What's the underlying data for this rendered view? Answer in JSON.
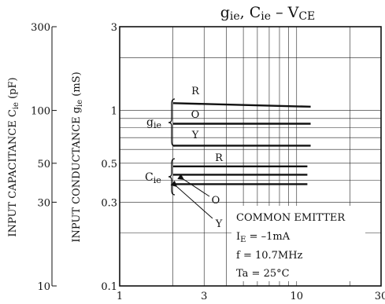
{
  "chart_data": {
    "type": "line",
    "title": {
      "main": "g",
      "main_sub": "ie",
      "sep": ", C",
      "second_sub": "ie",
      "dash": "–",
      "v": "V",
      "v_sub": "CE"
    },
    "x_scale": "log",
    "y_scale": "log",
    "xlim": [
      1,
      30
    ],
    "ylim": [
      0.1,
      3
    ],
    "x_ticks": [
      {
        "value": 1,
        "label": "1"
      },
      {
        "value": 3,
        "label": "3"
      },
      {
        "value": 10,
        "label": "10"
      },
      {
        "value": 30,
        "label": "30"
      }
    ],
    "y_ticks": [
      {
        "value": 3,
        "label": "3"
      },
      {
        "value": 1,
        "label": "1"
      },
      {
        "value": 0.5,
        "label": "0.5"
      },
      {
        "value": 0.3,
        "label": "0.3"
      },
      {
        "value": 0.1,
        "label": "0.1"
      }
    ],
    "left_axis": {
      "label": "INPUT CAPACITANCE",
      "label_symbol": "C",
      "label_sub": "ie",
      "unit": "(pF)",
      "ticks": [
        {
          "value": 300,
          "label": "300"
        },
        {
          "value": 100,
          "label": "100"
        },
        {
          "value": 50,
          "label": "50"
        },
        {
          "value": 30,
          "label": "30"
        },
        {
          "value": 10,
          "label": "10"
        }
      ]
    },
    "middle_axis": {
      "label": "INPUT CONDUCTANCE",
      "label_symbol": "g",
      "label_sub": "ie",
      "unit": "(mS)"
    },
    "grid": true,
    "series": [
      {
        "name": "R",
        "group": "gie",
        "x": [
          2,
          12
        ],
        "y": [
          1.1,
          1.05
        ]
      },
      {
        "name": "O",
        "group": "gie",
        "x": [
          2,
          12
        ],
        "y": [
          0.84,
          0.84
        ]
      },
      {
        "name": "Y",
        "group": "gie",
        "x": [
          2,
          12
        ],
        "y": [
          0.63,
          0.63
        ]
      },
      {
        "name": "R",
        "group": "Cie",
        "x": [
          2,
          11.5
        ],
        "y": [
          0.48,
          0.48
        ]
      },
      {
        "name": "O",
        "group": "Cie",
        "x": [
          2,
          11.5
        ],
        "y": [
          0.43,
          0.43
        ]
      },
      {
        "name": "Y",
        "group": "Cie",
        "x": [
          2,
          11.5
        ],
        "y": [
          0.38,
          0.38
        ]
      }
    ],
    "group_labels": {
      "gie": {
        "symbol": "g",
        "sub": "ie"
      },
      "Cie": {
        "symbol": "C",
        "sub": "ie"
      }
    },
    "annotation": {
      "line1": "COMMON EMITTER",
      "line2_sym": "I",
      "line2_sub": "E",
      "line2_rest": " = –1mA",
      "line3": "f = 10.7MHz",
      "line4": "Ta = 25°C"
    }
  }
}
